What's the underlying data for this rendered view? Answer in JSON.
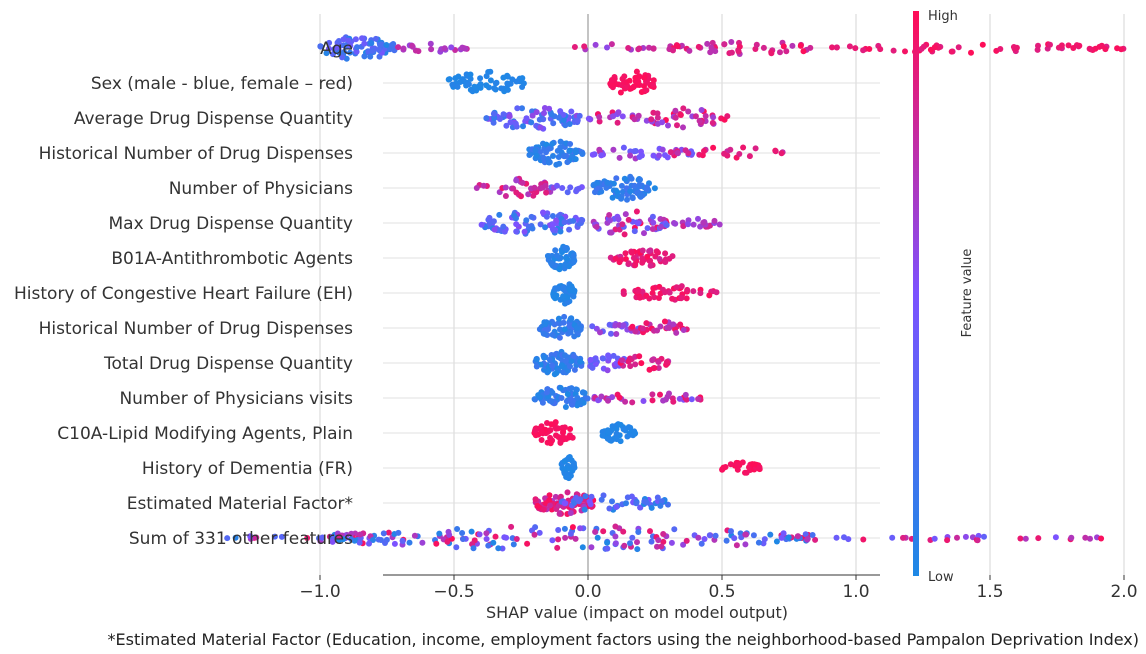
{
  "chart_data": {
    "type": "scatter",
    "subtype": "shap-beeswarm",
    "title": "",
    "xlabel": "SHAP value (impact on model output)",
    "xlim": [
      -1.35,
      2.05
    ],
    "xticks": [
      "−1.0",
      "−0.5",
      "0.0",
      "0.5",
      "1.0",
      "1.5",
      "2.0"
    ],
    "xtick_values": [
      -1.0,
      -0.5,
      0.0,
      0.5,
      1.0,
      1.5,
      2.0
    ],
    "grid": "horizontal row lines and vertical gridlines",
    "colorbar": {
      "label": "Feature value",
      "high": "High",
      "low": "Low",
      "low_color": "#1e88e5",
      "mid_color": "#7c52ff",
      "high_color": "#ff0d57"
    },
    "footnote": "*Estimated Material Factor (Education, income, employment factors using the neighborhood-based Pampalon Deprivation Index)",
    "features": [
      {
        "name": "Age",
        "clusters": [
          {
            "x0": -1.0,
            "x1": -0.72,
            "n": 80,
            "c0": 0.0,
            "c1": 0.45,
            "h": 1.0
          },
          {
            "x0": -0.72,
            "x1": -0.45,
            "n": 22,
            "c0": 0.55,
            "c1": 0.85,
            "h": 0.4
          },
          {
            "x0": -0.05,
            "x1": 0.25,
            "n": 14,
            "c0": 0.55,
            "c1": 0.9,
            "h": 0.35
          },
          {
            "x0": 0.3,
            "x1": 0.85,
            "n": 45,
            "c0": 0.7,
            "c1": 1.0,
            "h": 0.6
          },
          {
            "x0": 0.9,
            "x1": 2.0,
            "n": 60,
            "c0": 0.85,
            "c1": 1.0,
            "h": 0.4
          }
        ]
      },
      {
        "name": "Sex (male - blue, female – red)",
        "clusters": [
          {
            "x0": -0.52,
            "x1": -0.22,
            "n": 55,
            "c0": 0.0,
            "c1": 0.05,
            "h": 1.0
          },
          {
            "x0": 0.08,
            "x1": 0.25,
            "n": 50,
            "c0": 0.95,
            "c1": 1.0,
            "h": 1.0
          }
        ]
      },
      {
        "name": "Average Drug Dispense Quantity",
        "clusters": [
          {
            "x0": -0.38,
            "x1": -0.02,
            "n": 80,
            "c0": 0.05,
            "c1": 0.6,
            "h": 1.0
          },
          {
            "x0": 0.0,
            "x1": 0.2,
            "n": 20,
            "c0": 0.5,
            "c1": 1.0,
            "h": 0.5
          },
          {
            "x0": 0.2,
            "x1": 0.52,
            "n": 40,
            "c0": 0.55,
            "c1": 1.0,
            "h": 0.8
          }
        ]
      },
      {
        "name": "Historical Number of Drug Dispenses",
        "clusters": [
          {
            "x0": -0.22,
            "x1": -0.02,
            "n": 70,
            "c0": 0.0,
            "c1": 0.2,
            "h": 1.0
          },
          {
            "x0": 0.0,
            "x1": 0.4,
            "n": 35,
            "c0": 0.35,
            "c1": 0.75,
            "h": 0.5
          },
          {
            "x0": 0.3,
            "x1": 0.75,
            "n": 25,
            "c0": 0.75,
            "c1": 1.0,
            "h": 0.5
          }
        ]
      },
      {
        "name": "Number of Physicians",
        "clusters": [
          {
            "x0": -0.42,
            "x1": -0.12,
            "n": 35,
            "c0": 0.6,
            "c1": 0.95,
            "h": 0.8
          },
          {
            "x0": -0.15,
            "x1": -0.02,
            "n": 10,
            "c0": 0.3,
            "c1": 0.6,
            "h": 0.4
          },
          {
            "x0": 0.02,
            "x1": 0.25,
            "n": 75,
            "c0": 0.0,
            "c1": 0.2,
            "h": 1.0
          }
        ]
      },
      {
        "name": "Max Drug Dispense Quantity",
        "clusters": [
          {
            "x0": -0.4,
            "x1": -0.02,
            "n": 85,
            "c0": 0.05,
            "c1": 0.55,
            "h": 1.0
          },
          {
            "x0": 0.0,
            "x1": 0.3,
            "n": 55,
            "c0": 0.3,
            "c1": 1.0,
            "h": 1.0
          },
          {
            "x0": 0.3,
            "x1": 0.5,
            "n": 18,
            "c0": 0.55,
            "c1": 0.85,
            "h": 0.4
          }
        ]
      },
      {
        "name": "B01A-Antithrombotic Agents",
        "clusters": [
          {
            "x0": -0.15,
            "x1": -0.05,
            "n": 55,
            "c0": 0.0,
            "c1": 0.1,
            "h": 1.0
          },
          {
            "x0": 0.08,
            "x1": 0.32,
            "n": 50,
            "c0": 0.8,
            "c1": 1.0,
            "h": 0.7
          }
        ]
      },
      {
        "name": "History of Congestive Heart Failure (EH)",
        "clusters": [
          {
            "x0": -0.13,
            "x1": -0.05,
            "n": 50,
            "c0": 0.0,
            "c1": 0.08,
            "h": 1.0
          },
          {
            "x0": 0.12,
            "x1": 0.5,
            "n": 50,
            "c0": 0.85,
            "c1": 1.0,
            "h": 0.6
          }
        ]
      },
      {
        "name": "Historical Number of Drug Dispenses",
        "clusters": [
          {
            "x0": -0.18,
            "x1": -0.02,
            "n": 70,
            "c0": 0.0,
            "c1": 0.2,
            "h": 1.0
          },
          {
            "x0": 0.0,
            "x1": 0.2,
            "n": 20,
            "c0": 0.35,
            "c1": 0.7,
            "h": 0.5
          },
          {
            "x0": 0.15,
            "x1": 0.37,
            "n": 30,
            "c0": 0.65,
            "c1": 1.0,
            "h": 0.6
          }
        ]
      },
      {
        "name": "Total Drug Dispense Quantity",
        "clusters": [
          {
            "x0": -0.2,
            "x1": -0.02,
            "n": 65,
            "c0": 0.0,
            "c1": 0.2,
            "h": 1.0
          },
          {
            "x0": 0.0,
            "x1": 0.15,
            "n": 25,
            "c0": 0.3,
            "c1": 0.6,
            "h": 0.8
          },
          {
            "x0": 0.12,
            "x1": 0.3,
            "n": 25,
            "c0": 0.75,
            "c1": 1.0,
            "h": 0.6
          }
        ]
      },
      {
        "name": "Number of Physicians visits",
        "clusters": [
          {
            "x0": -0.2,
            "x1": 0.0,
            "n": 65,
            "c0": 0.0,
            "c1": 0.2,
            "h": 1.0
          },
          {
            "x0": 0.02,
            "x1": 0.42,
            "n": 35,
            "c0": 0.45,
            "c1": 1.0,
            "h": 0.5
          }
        ]
      },
      {
        "name": "C10A-Lipid Modifying Agents, Plain",
        "clusters": [
          {
            "x0": -0.2,
            "x1": -0.05,
            "n": 45,
            "c0": 0.95,
            "c1": 1.0,
            "h": 1.0
          },
          {
            "x0": 0.05,
            "x1": 0.18,
            "n": 40,
            "c0": 0.0,
            "c1": 0.05,
            "h": 0.8
          }
        ]
      },
      {
        "name": "History of Dementia (FR)",
        "clusters": [
          {
            "x0": -0.1,
            "x1": -0.05,
            "n": 35,
            "c0": 0.0,
            "c1": 0.05,
            "h": 1.0
          },
          {
            "x0": 0.5,
            "x1": 0.65,
            "n": 30,
            "c0": 0.95,
            "c1": 1.0,
            "h": 0.5
          }
        ]
      },
      {
        "name": "Estimated Material Factor*",
        "clusters": [
          {
            "x0": -0.2,
            "x1": 0.02,
            "n": 75,
            "c0": 0.65,
            "c1": 1.0,
            "h": 1.0
          },
          {
            "x0": -0.1,
            "x1": 0.3,
            "n": 40,
            "c0": 0.0,
            "c1": 0.5,
            "h": 0.8
          },
          {
            "x0": 0.2,
            "x1": 0.3,
            "n": 10,
            "c0": 0.0,
            "c1": 0.3,
            "h": 0.5
          }
        ]
      },
      {
        "name": "Sum of 331 other features",
        "clusters": [
          {
            "x0": -1.35,
            "x1": -1.0,
            "n": 10,
            "c0": 0.0,
            "c1": 1.0,
            "h": 0.2
          },
          {
            "x0": -1.0,
            "x1": 0.85,
            "n": 200,
            "c0": 0.0,
            "c1": 1.0,
            "h": 1.0
          },
          {
            "x0": 0.85,
            "x1": 1.95,
            "n": 30,
            "c0": 0.3,
            "c1": 1.0,
            "h": 0.2
          }
        ]
      }
    ]
  }
}
